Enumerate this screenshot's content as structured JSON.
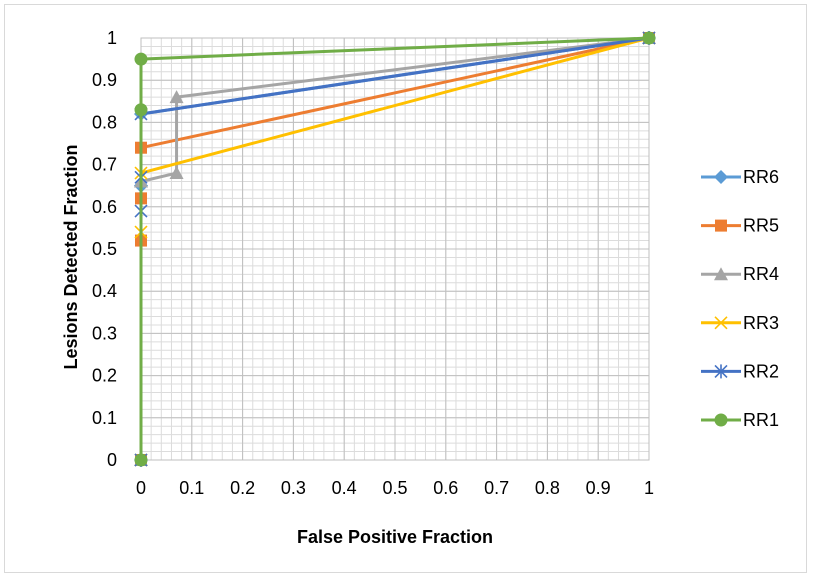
{
  "chart_data": {
    "type": "line",
    "title": "",
    "xlabel": "False Positive Fraction",
    "ylabel": "Lesions Detected Fraction",
    "xlim": [
      0,
      1
    ],
    "ylim": [
      0,
      1
    ],
    "x_ticks": [
      "0",
      "0.1",
      "0.2",
      "0.3",
      "0.4",
      "0.5",
      "0.6",
      "0.7",
      "0.8",
      "0.9",
      "1"
    ],
    "y_ticks": [
      "0",
      "0.1",
      "0.2",
      "0.3",
      "0.4",
      "0.5",
      "0.6",
      "0.7",
      "0.8",
      "0.9",
      "1"
    ],
    "grid": {
      "major": true,
      "minor": true,
      "minor_per_major": 5
    },
    "legend_position": "right",
    "series": [
      {
        "name": "RR6",
        "color": "#5b9bd5",
        "marker": "diamond",
        "points": [
          [
            0,
            0
          ],
          [
            0,
            0.65
          ],
          [
            0,
            0.65
          ],
          [
            0,
            0.82
          ],
          [
            1,
            1
          ]
        ]
      },
      {
        "name": "RR5",
        "color": "#ed7d31",
        "marker": "square",
        "points": [
          [
            0,
            0
          ],
          [
            0,
            0.52
          ],
          [
            0,
            0.62
          ],
          [
            0,
            0.74
          ],
          [
            1,
            1
          ]
        ]
      },
      {
        "name": "RR4",
        "color": "#a5a5a5",
        "marker": "triangle",
        "points": [
          [
            0,
            0
          ],
          [
            0,
            0.66
          ],
          [
            0.07,
            0.68
          ],
          [
            0.07,
            0.86
          ],
          [
            1,
            1
          ]
        ]
      },
      {
        "name": "RR3",
        "color": "#ffc000",
        "marker": "x",
        "points": [
          [
            0,
            0
          ],
          [
            0,
            0.54
          ],
          [
            0,
            0.68
          ],
          [
            1,
            1
          ]
        ]
      },
      {
        "name": "RR2",
        "color": "#4472c4",
        "marker": "star",
        "points": [
          [
            0,
            0
          ],
          [
            0,
            0.59
          ],
          [
            0,
            0.67
          ],
          [
            0,
            0.82
          ],
          [
            1,
            1
          ]
        ]
      },
      {
        "name": "RR1",
        "color": "#70ad47",
        "marker": "circle",
        "points": [
          [
            0,
            0
          ],
          [
            0,
            0.83
          ],
          [
            0,
            0.95
          ],
          [
            1,
            1
          ]
        ]
      }
    ]
  }
}
